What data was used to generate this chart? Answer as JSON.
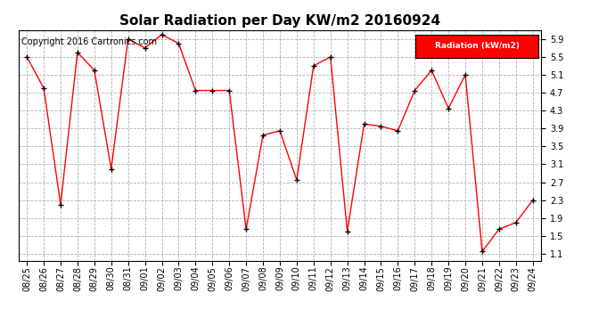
{
  "title": "Solar Radiation per Day KW/m2 20160924",
  "copyright_text": "Copyright 2016 Cartronics.com",
  "legend_label": "Radiation (kW/m2)",
  "dates": [
    "08/25",
    "08/26",
    "08/27",
    "08/28",
    "08/29",
    "08/30",
    "08/31",
    "09/01",
    "09/02",
    "09/03",
    "09/04",
    "09/05",
    "09/06",
    "09/07",
    "09/08",
    "09/09",
    "09/10",
    "09/11",
    "09/12",
    "09/13",
    "09/14",
    "09/15",
    "09/16",
    "09/17",
    "09/18",
    "09/19",
    "09/20",
    "09/21",
    "09/22",
    "09/23",
    "09/24"
  ],
  "values": [
    5.5,
    4.8,
    2.2,
    5.6,
    5.2,
    3.0,
    5.9,
    5.7,
    6.0,
    5.8,
    4.75,
    4.75,
    4.75,
    1.65,
    3.75,
    3.85,
    2.75,
    5.3,
    5.5,
    1.6,
    4.0,
    3.95,
    3.85,
    4.75,
    5.2,
    4.35,
    5.1,
    1.15,
    1.65,
    1.8,
    2.3
  ],
  "ylim": [
    0.95,
    6.1
  ],
  "yticks": [
    1.1,
    1.5,
    1.9,
    2.3,
    2.7,
    3.1,
    3.5,
    3.9,
    4.3,
    4.7,
    5.1,
    5.5,
    5.9
  ],
  "line_color": "#ff0000",
  "marker_color": "#000000",
  "bg_color": "#ffffff",
  "grid_color": "#b0b0b0",
  "legend_bg": "#ff0000",
  "legend_text_color": "#ffffff",
  "title_fontsize": 11,
  "tick_fontsize": 7,
  "copyright_fontsize": 7
}
